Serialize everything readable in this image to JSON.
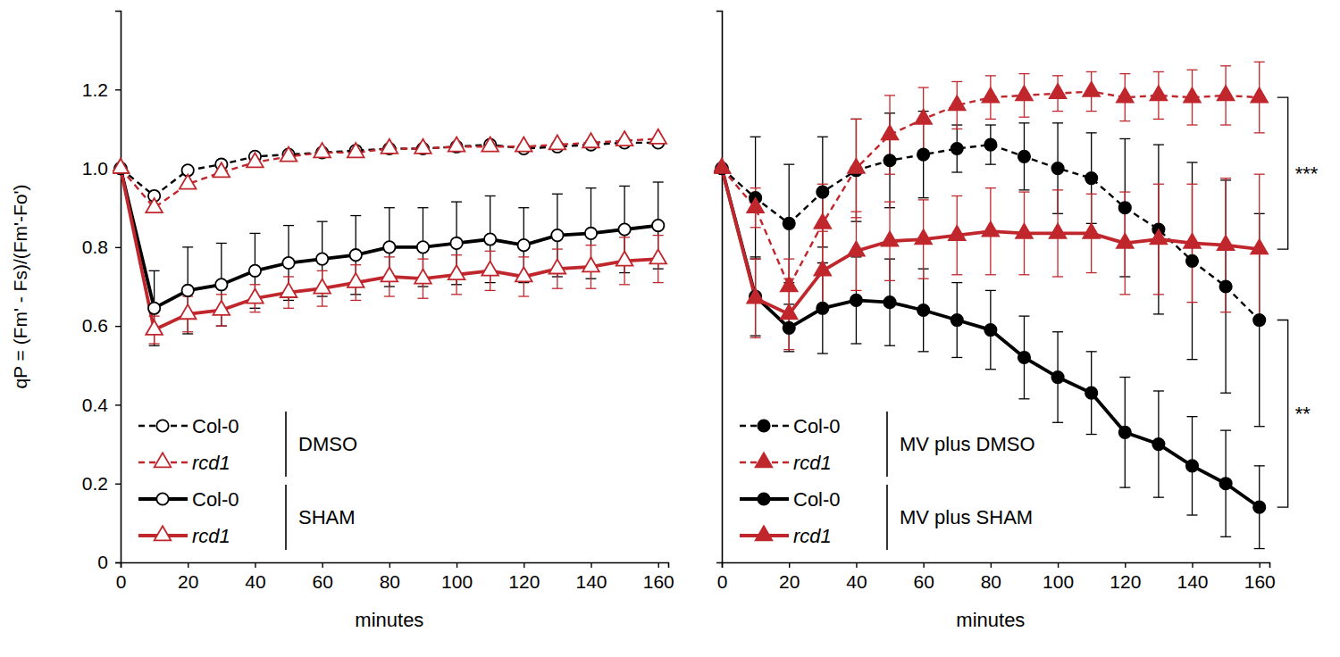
{
  "chart_data": [
    {
      "type": "line",
      "ylabel": "qP = (Fm' - Fs)/(Fm'-Fo')",
      "xlabel": "minutes",
      "x": [
        0,
        10,
        20,
        30,
        40,
        50,
        60,
        70,
        80,
        90,
        100,
        110,
        120,
        130,
        140,
        150,
        160
      ],
      "xlim": [
        0,
        163
      ],
      "xticks": [
        0,
        20,
        40,
        60,
        80,
        100,
        120,
        140,
        160
      ],
      "ylim": [
        0,
        1.4
      ],
      "yticks": [
        0,
        0.2,
        0.4,
        0.6,
        0.8,
        {
          "value": 1,
          "label": "1.0"
        },
        1.2
      ],
      "legend": "lower left",
      "series": [
        {
          "name": "Col-0",
          "group": "DMSO",
          "color": "#000000",
          "marker": "circle-open",
          "line_style": "dashed",
          "values": [
            1.0,
            0.93,
            0.995,
            1.01,
            1.03,
            1.035,
            1.04,
            1.045,
            1.05,
            1.05,
            1.055,
            1.06,
            1.05,
            1.055,
            1.06,
            1.065,
            1.065
          ]
        },
        {
          "name": "rcd1",
          "group": "DMSO",
          "color": "#c0272d",
          "marker": "triangle-open",
          "line_style": "dashed",
          "values": [
            1.0,
            0.9,
            0.96,
            0.99,
            1.015,
            1.03,
            1.04,
            1.04,
            1.05,
            1.05,
            1.055,
            1.055,
            1.055,
            1.06,
            1.065,
            1.07,
            1.075
          ]
        },
        {
          "name": "Col-0",
          "group": "SHAM",
          "color": "#000000",
          "marker": "circle-open",
          "line_style": "solid",
          "values": [
            1.0,
            0.645,
            0.69,
            0.705,
            0.74,
            0.76,
            0.77,
            0.78,
            0.8,
            0.8,
            0.81,
            0.82,
            0.805,
            0.83,
            0.835,
            0.845,
            0.855
          ],
          "errors": [
            0,
            0.095,
            0.11,
            0.105,
            0.095,
            0.095,
            0.095,
            0.1,
            0.1,
            0.1,
            0.105,
            0.11,
            0.095,
            0.105,
            0.115,
            0.11,
            0.11
          ]
        },
        {
          "name": "rcd1",
          "group": "SHAM",
          "color": "#c0272d",
          "marker": "triangle-open",
          "line_style": "solid",
          "values": [
            1.0,
            0.59,
            0.63,
            0.64,
            0.67,
            0.685,
            0.695,
            0.71,
            0.725,
            0.72,
            0.73,
            0.74,
            0.725,
            0.745,
            0.75,
            0.765,
            0.77
          ],
          "errors": [
            0,
            0.035,
            0.045,
            0.04,
            0.035,
            0.04,
            0.045,
            0.045,
            0.05,
            0.05,
            0.05,
            0.05,
            0.05,
            0.05,
            0.055,
            0.06,
            0.06
          ]
        }
      ]
    },
    {
      "type": "line",
      "xlabel": "minutes",
      "x": [
        0,
        10,
        20,
        30,
        40,
        50,
        60,
        70,
        80,
        90,
        100,
        110,
        120,
        130,
        140,
        150,
        160
      ],
      "xlim": [
        0,
        163
      ],
      "xticks": [
        0,
        20,
        40,
        60,
        80,
        100,
        120,
        140,
        160
      ],
      "ylim": [
        0,
        1.4
      ],
      "tick_labels": "x",
      "legend": "lower left",
      "series": [
        {
          "name": "Col-0",
          "group": "MV plus DMSO",
          "color": "#000000",
          "marker": "circle",
          "line_style": "dashed",
          "values": [
            1.0,
            0.925,
            0.86,
            0.94,
            0.995,
            1.02,
            1.035,
            1.05,
            1.06,
            1.03,
            1.0,
            0.975,
            0.9,
            0.845,
            0.765,
            0.7,
            0.615
          ],
          "errors": [
            0,
            0.155,
            0.15,
            0.14,
            0.13,
            0.12,
            0.11,
            0.06,
            0.05,
            0.085,
            0.115,
            0.115,
            0.175,
            0.215,
            0.25,
            0.27,
            0.27
          ]
        },
        {
          "name": "rcd1",
          "group": "MV plus DMSO",
          "color": "#c0272d",
          "marker": "triangle",
          "line_style": "dashed",
          "values": [
            1.0,
            0.9,
            0.7,
            0.86,
            1.0,
            1.085,
            1.125,
            1.16,
            1.18,
            1.185,
            1.19,
            1.195,
            1.18,
            1.185,
            1.18,
            1.185,
            1.18
          ],
          "errors": [
            0,
            0.05,
            0.07,
            0.1,
            0.125,
            0.1,
            0.08,
            0.06,
            0.055,
            0.055,
            0.045,
            0.05,
            0.06,
            0.06,
            0.07,
            0.075,
            0.09
          ]
        },
        {
          "name": "Col-0",
          "group": "MV plus SHAM",
          "color": "#000000",
          "marker": "circle",
          "line_style": "solid",
          "values": [
            1.0,
            0.675,
            0.595,
            0.645,
            0.665,
            0.66,
            0.64,
            0.615,
            0.59,
            0.52,
            0.47,
            0.43,
            0.33,
            0.3,
            0.245,
            0.2,
            0.14
          ],
          "errors": [
            0,
            0.1,
            0.06,
            0.115,
            0.11,
            0.11,
            0.105,
            0.095,
            0.1,
            0.105,
            0.115,
            0.105,
            0.14,
            0.135,
            0.125,
            0.135,
            0.105
          ]
        },
        {
          "name": "rcd1",
          "group": "MV plus SHAM",
          "color": "#c0272d",
          "marker": "triangle",
          "line_style": "solid",
          "values": [
            1.0,
            0.67,
            0.63,
            0.74,
            0.79,
            0.815,
            0.82,
            0.83,
            0.84,
            0.835,
            0.835,
            0.835,
            0.81,
            0.82,
            0.81,
            0.805,
            0.795
          ],
          "errors": [
            0,
            0.1,
            0.09,
            0.1,
            0.1,
            0.1,
            0.1,
            0.1,
            0.11,
            0.105,
            0.11,
            0.1,
            0.13,
            0.14,
            0.15,
            0.17,
            0.19
          ]
        }
      ],
      "annotations": [
        {
          "text": "***",
          "x": 160,
          "y": [
            1.18,
            0.795
          ]
        },
        {
          "text": "**",
          "x": 160,
          "y": [
            0.615,
            0.14
          ]
        }
      ]
    }
  ]
}
